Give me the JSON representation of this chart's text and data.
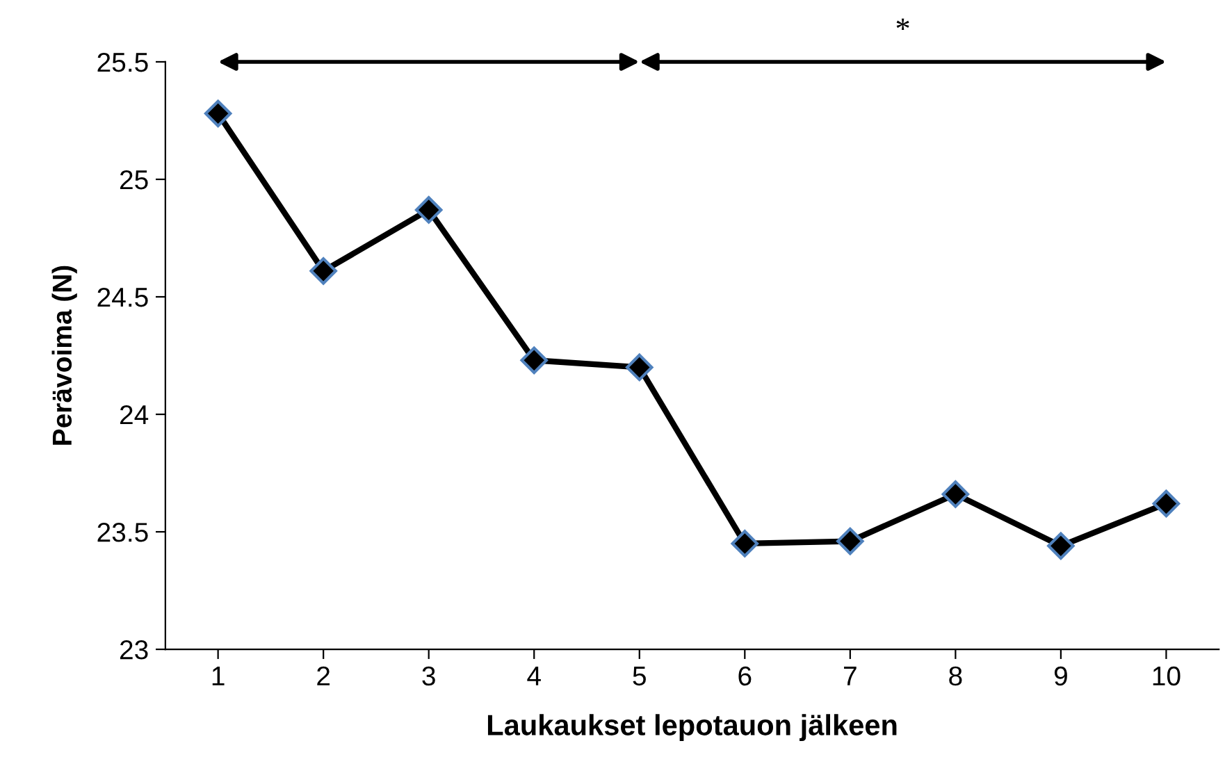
{
  "chart_data": {
    "type": "line",
    "xlabel": "Laukaukset lepotauon jälkeen",
    "ylabel": "Perävoima (N)",
    "x": [
      1,
      2,
      3,
      4,
      5,
      6,
      7,
      8,
      9,
      10
    ],
    "series": [
      {
        "color": "#000000",
        "values": [
          25.28,
          24.61,
          24.87,
          24.23,
          24.2,
          23.45,
          23.46,
          23.66,
          23.44,
          23.62
        ]
      }
    ],
    "xlim": [
      0.5,
      10.5
    ],
    "xticks": [
      1,
      2,
      3,
      4,
      5,
      6,
      7,
      8,
      9,
      10
    ],
    "ylim": [
      23,
      25.5
    ],
    "yticks": [
      23,
      23.5,
      24,
      24.5,
      25,
      25.5
    ],
    "annotations": [
      "*"
    ],
    "marker": "diamond",
    "line_style": "solid",
    "grid": false,
    "legend": false
  }
}
